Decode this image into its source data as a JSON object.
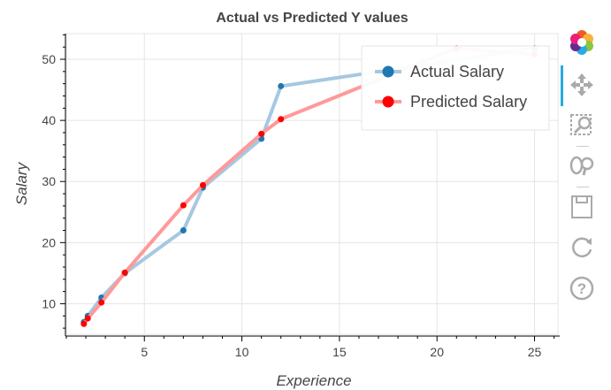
{
  "chart_data": {
    "type": "line",
    "title": "Actual vs Predicted Y values",
    "xlabel": "Experience",
    "ylabel": "Salary",
    "xlim": [
      1.0,
      26.2
    ],
    "ylim": [
      5.0,
      54.2
    ],
    "xticks": [
      5,
      10,
      15,
      20,
      25
    ],
    "yticks": [
      10,
      20,
      30,
      40,
      50
    ],
    "grid": true,
    "legend_position": "top-right",
    "series": [
      {
        "name": "Actual Salary",
        "color": "#1f77b4",
        "line_color": "#a6c8e0",
        "x": [
          1.9,
          2.1,
          2.8,
          4.0,
          7.0,
          8.0,
          11.0,
          12.0,
          25.0
        ],
        "y": [
          7.0,
          8.0,
          11.0,
          15.0,
          22.0,
          29.0,
          37.0,
          45.6,
          51.8
        ]
      },
      {
        "name": "Predicted Salary",
        "color": "#ff0000",
        "line_color": "#ff9999",
        "x": [
          1.9,
          2.1,
          2.8,
          4.0,
          7.0,
          8.0,
          11.0,
          12.0,
          21.0,
          25.0
        ],
        "y": [
          6.7,
          7.6,
          10.2,
          15.1,
          26.1,
          29.4,
          37.8,
          40.2,
          51.8,
          50.8
        ]
      }
    ]
  },
  "toolbar": {
    "tools": [
      "bokeh-logo-icon",
      "pan-icon",
      "box-zoom-icon",
      "wheel-zoom-icon",
      "save-icon",
      "reset-icon",
      "help-icon"
    ]
  }
}
